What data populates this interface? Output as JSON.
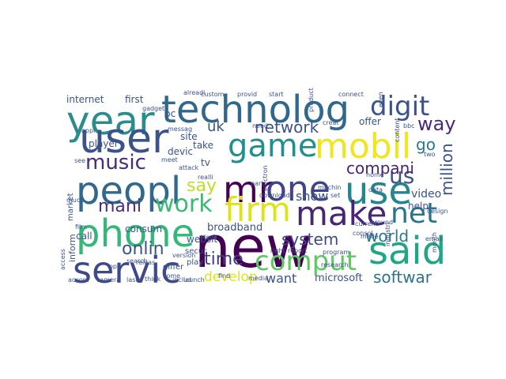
{
  "words": [
    {
      "text": "technolog",
      "color": "#30678d"
    },
    {
      "text": "year",
      "color": "#2a8c8c"
    },
    {
      "text": "digit",
      "color": "#3b528b"
    },
    {
      "text": "user",
      "color": "#3b528b"
    },
    {
      "text": "game",
      "color": "#20908d"
    },
    {
      "text": "mobil",
      "color": "#f1e51d"
    },
    {
      "text": "music",
      "color": "#472d7b"
    },
    {
      "text": "peopl",
      "color": "#31688e"
    },
    {
      "text": "mr",
      "color": "#440154"
    },
    {
      "text": "one",
      "color": "#404387"
    },
    {
      "text": "use",
      "color": "#25848e"
    },
    {
      "text": "us",
      "color": "#3b528b"
    },
    {
      "text": "firm",
      "color": "#dde318"
    },
    {
      "text": "make",
      "color": "#482475"
    },
    {
      "text": "net",
      "color": "#2c728e"
    },
    {
      "text": "work",
      "color": "#3aba76"
    },
    {
      "text": "mani",
      "color": "#472d7b"
    },
    {
      "text": "say",
      "color": "#bddf26"
    },
    {
      "text": "phone",
      "color": "#35b779"
    },
    {
      "text": "new",
      "color": "#440154"
    },
    {
      "text": "said",
      "color": "#21a685"
    },
    {
      "text": "servic",
      "color": "#3e4989"
    },
    {
      "text": "comput",
      "color": "#5ec962"
    },
    {
      "text": "network",
      "color": "#3b528b"
    },
    {
      "text": "uk",
      "color": "#3b528b"
    },
    {
      "text": "way",
      "color": "#482878"
    },
    {
      "text": "go",
      "color": "#2a788e"
    },
    {
      "text": "compani",
      "color": "#482475"
    },
    {
      "text": "million",
      "color": "#3b528b"
    },
    {
      "text": "system",
      "color": "#3e4989"
    },
    {
      "text": "world",
      "color": "#2a788e"
    },
    {
      "text": "show",
      "color": "#3b528b"
    },
    {
      "text": "softwar",
      "color": "#2c728e"
    },
    {
      "text": "time",
      "color": "#433e85"
    },
    {
      "text": "develop",
      "color": "#dde318"
    },
    {
      "text": "want",
      "color": "#3b528b"
    },
    {
      "text": "onlin",
      "color": "#3b528b"
    },
    {
      "text": "broadband",
      "color": "#3b528b"
    },
    {
      "text": "video",
      "color": "#3b528b"
    },
    {
      "text": "help",
      "color": "#3b528b"
    },
    {
      "text": "microsoft",
      "color": "#3b528b"
    },
    {
      "text": "websit",
      "color": "#3b528b"
    },
    {
      "text": "site",
      "color": "#3b528b"
    },
    {
      "text": "take",
      "color": "#3b528b"
    },
    {
      "text": "devic",
      "color": "#3b528b"
    },
    {
      "text": "tv",
      "color": "#3b528b"
    },
    {
      "text": "pc",
      "color": "#3b528b"
    },
    {
      "text": "player",
      "color": "#3b528b"
    },
    {
      "text": "offer",
      "color": "#3b528b"
    },
    {
      "text": "internet",
      "color": "#3b528b"
    },
    {
      "text": "first",
      "color": "#3b528b"
    },
    {
      "text": "call",
      "color": "#3b528b"
    },
    {
      "text": "inform",
      "color": "#3b528b"
    },
    {
      "text": "market",
      "color": "#3b528b"
    },
    {
      "text": "consum",
      "color": "#3b528b"
    },
    {
      "text": "secur",
      "color": "#3b528b"
    },
    {
      "text": "play",
      "color": "#3b528b"
    },
    {
      "text": "differ",
      "color": "#3b528b"
    },
    {
      "text": "need",
      "color": "#3b528b"
    },
    {
      "text": "look",
      "color": "#3b528b"
    },
    {
      "text": "download",
      "color": "#3b528b"
    },
    {
      "text": "search",
      "color": "#3b528b"
    },
    {
      "text": "come",
      "color": "#3b528b"
    },
    {
      "text": "research",
      "color": "#3b528b"
    },
    {
      "text": "program",
      "color": "#3b528b"
    },
    {
      "text": "machin",
      "color": "#3b528b"
    },
    {
      "text": "home",
      "color": "#3b528b"
    },
    {
      "text": "data",
      "color": "#3b528b"
    },
    {
      "text": "email",
      "color": "#3b528b"
    },
    {
      "text": "month",
      "color": "#3b528b"
    },
    {
      "text": "industri",
      "color": "#3b528b"
    },
    {
      "text": "current",
      "color": "#3b528b"
    },
    {
      "text": "around",
      "color": "#3b528b"
    },
    {
      "text": "think",
      "color": "#3b528b"
    },
    {
      "text": "launch",
      "color": "#3b528b"
    },
    {
      "text": "includ",
      "color": "#3b528b"
    },
    {
      "text": "last",
      "color": "#3b528b"
    },
    {
      "text": "camera",
      "color": "#3b528b"
    },
    {
      "text": "accord",
      "color": "#3b528b"
    },
    {
      "text": "film",
      "color": "#3b528b"
    },
    {
      "text": "gadget",
      "color": "#3b528b"
    },
    {
      "text": "appl",
      "color": "#3b528b"
    },
    {
      "text": "see",
      "color": "#3b528b"
    },
    {
      "text": "much",
      "color": "#3b528b"
    },
    {
      "text": "access",
      "color": "#3b528b"
    },
    {
      "text": "custom",
      "color": "#3b528b"
    },
    {
      "text": "start",
      "color": "#3b528b"
    },
    {
      "text": "connect",
      "color": "#3b528b"
    },
    {
      "text": "bbc",
      "color": "#3b528b"
    },
    {
      "text": "two",
      "color": "#3b528b"
    },
    {
      "text": "creat",
      "color": "#3b528b"
    },
    {
      "text": "content",
      "color": "#3b528b"
    },
    {
      "text": "even",
      "color": "#3b528b"
    },
    {
      "text": "product",
      "color": "#3b528b"
    },
    {
      "text": "messag",
      "color": "#3b528b"
    },
    {
      "text": "alreadi",
      "color": "#3b528b"
    },
    {
      "text": "oper",
      "color": "#3b528b"
    },
    {
      "text": "version",
      "color": "#3b528b"
    },
    {
      "text": "releas",
      "color": "#3b528b"
    },
    {
      "text": "part",
      "color": "#3b528b"
    },
    {
      "text": "set",
      "color": "#3b528b"
    },
    {
      "text": "meet",
      "color": "#3b528b"
    },
    {
      "text": "find",
      "color": "#3b528b"
    },
    {
      "text": "media",
      "color": "#3b528b"
    },
    {
      "text": "consol",
      "color": "#3b528b"
    },
    {
      "text": "made",
      "color": "#3b528b"
    },
    {
      "text": "design",
      "color": "#3b528b"
    },
    {
      "text": "realli",
      "color": "#3b528b"
    },
    {
      "text": "provid",
      "color": "#3b528b"
    },
    {
      "text": "attack",
      "color": "#3b528b"
    },
    {
      "text": "electron",
      "color": "#3b528b"
    },
    {
      "text": "right",
      "color": "#3b528b"
    },
    {
      "text": "report",
      "color": "#3b528b"
    }
  ]
}
